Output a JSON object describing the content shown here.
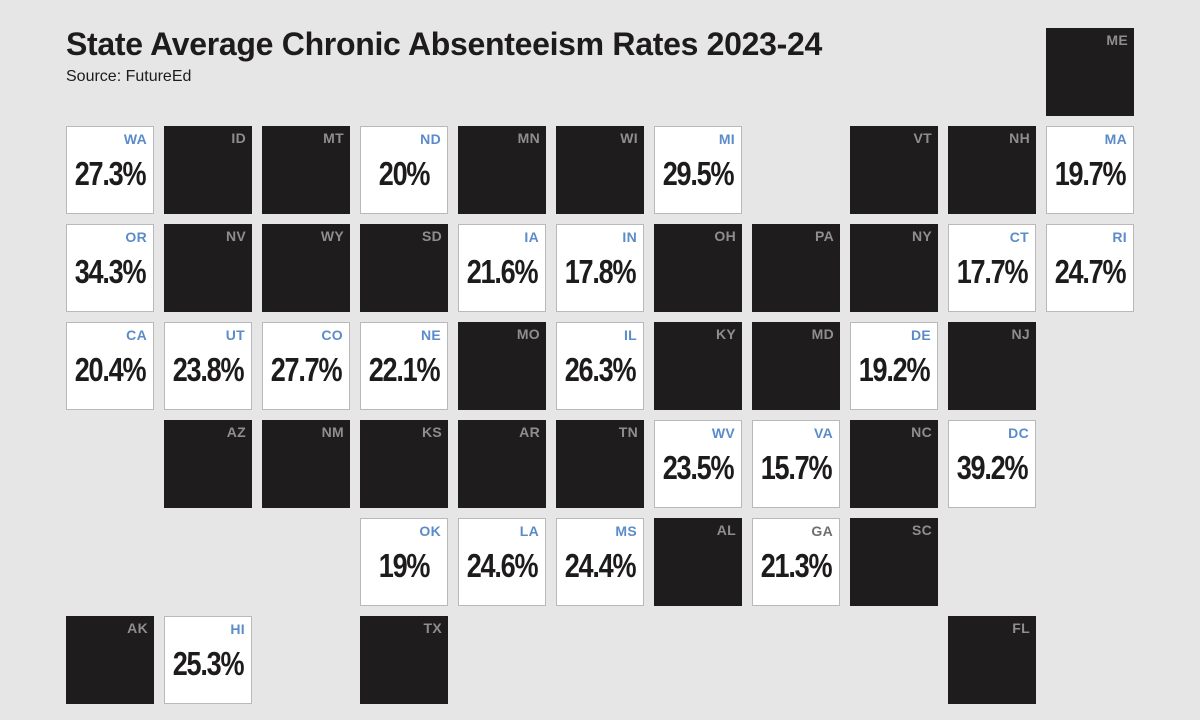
{
  "title": "State Average Chronic Absenteeism Rates 2023-24",
  "source": "Source: FutureEd",
  "colors": {
    "background": "#e6e6e7",
    "no_data_tile": "#1e1c1d",
    "data_tile": "#ffffff",
    "label_blue": "#5b8cc9",
    "label_gray": "#8e8d8f"
  },
  "chart_data": {
    "type": "tile-grid-map",
    "title": "State Average Chronic Absenteeism Rates 2023-24",
    "source": "Source: FutureEd",
    "unit": "%",
    "states": [
      {
        "abbr": "ME",
        "row": 0,
        "col": 10,
        "value": null
      },
      {
        "abbr": "WA",
        "row": 1,
        "col": 0,
        "value": "27.3%"
      },
      {
        "abbr": "ID",
        "row": 1,
        "col": 1,
        "value": null
      },
      {
        "abbr": "MT",
        "row": 1,
        "col": 2,
        "value": null
      },
      {
        "abbr": "ND",
        "row": 1,
        "col": 3,
        "value": "20%"
      },
      {
        "abbr": "MN",
        "row": 1,
        "col": 4,
        "value": null
      },
      {
        "abbr": "WI",
        "row": 1,
        "col": 5,
        "value": null
      },
      {
        "abbr": "MI",
        "row": 1,
        "col": 6,
        "value": "29.5%"
      },
      {
        "abbr": "VT",
        "row": 1,
        "col": 8,
        "value": null
      },
      {
        "abbr": "NH",
        "row": 1,
        "col": 9,
        "value": null
      },
      {
        "abbr": "MA",
        "row": 1,
        "col": 10,
        "value": "19.7%"
      },
      {
        "abbr": "OR",
        "row": 2,
        "col": 0,
        "value": "34.3%"
      },
      {
        "abbr": "NV",
        "row": 2,
        "col": 1,
        "value": null
      },
      {
        "abbr": "WY",
        "row": 2,
        "col": 2,
        "value": null
      },
      {
        "abbr": "SD",
        "row": 2,
        "col": 3,
        "value": null
      },
      {
        "abbr": "IA",
        "row": 2,
        "col": 4,
        "value": "21.6%"
      },
      {
        "abbr": "IN",
        "row": 2,
        "col": 5,
        "value": "17.8%"
      },
      {
        "abbr": "OH",
        "row": 2,
        "col": 6,
        "value": null
      },
      {
        "abbr": "PA",
        "row": 2,
        "col": 7,
        "value": null
      },
      {
        "abbr": "NY",
        "row": 2,
        "col": 8,
        "value": null
      },
      {
        "abbr": "CT",
        "row": 2,
        "col": 9,
        "value": "17.7%"
      },
      {
        "abbr": "RI",
        "row": 2,
        "col": 10,
        "value": "24.7%"
      },
      {
        "abbr": "CA",
        "row": 3,
        "col": 0,
        "value": "20.4%"
      },
      {
        "abbr": "UT",
        "row": 3,
        "col": 1,
        "value": "23.8%"
      },
      {
        "abbr": "CO",
        "row": 3,
        "col": 2,
        "value": "27.7%"
      },
      {
        "abbr": "NE",
        "row": 3,
        "col": 3,
        "value": "22.1%"
      },
      {
        "abbr": "MO",
        "row": 3,
        "col": 4,
        "value": null
      },
      {
        "abbr": "IL",
        "row": 3,
        "col": 5,
        "value": "26.3%"
      },
      {
        "abbr": "KY",
        "row": 3,
        "col": 6,
        "value": null
      },
      {
        "abbr": "MD",
        "row": 3,
        "col": 7,
        "value": null
      },
      {
        "abbr": "DE",
        "row": 3,
        "col": 8,
        "value": "19.2%"
      },
      {
        "abbr": "NJ",
        "row": 3,
        "col": 9,
        "value": null
      },
      {
        "abbr": "AZ",
        "row": 4,
        "col": 1,
        "value": null
      },
      {
        "abbr": "NM",
        "row": 4,
        "col": 2,
        "value": null
      },
      {
        "abbr": "KS",
        "row": 4,
        "col": 3,
        "value": null
      },
      {
        "abbr": "AR",
        "row": 4,
        "col": 4,
        "value": null
      },
      {
        "abbr": "TN",
        "row": 4,
        "col": 5,
        "value": null
      },
      {
        "abbr": "WV",
        "row": 4,
        "col": 6,
        "value": "23.5%"
      },
      {
        "abbr": "VA",
        "row": 4,
        "col": 7,
        "value": "15.7%"
      },
      {
        "abbr": "NC",
        "row": 4,
        "col": 8,
        "value": null
      },
      {
        "abbr": "DC",
        "row": 4,
        "col": 9,
        "value": "39.2%"
      },
      {
        "abbr": "OK",
        "row": 5,
        "col": 3,
        "value": "19%"
      },
      {
        "abbr": "LA",
        "row": 5,
        "col": 4,
        "value": "24.6%"
      },
      {
        "abbr": "MS",
        "row": 5,
        "col": 5,
        "value": "24.4%"
      },
      {
        "abbr": "AL",
        "row": 5,
        "col": 6,
        "value": null
      },
      {
        "abbr": "GA",
        "row": 5,
        "col": 7,
        "value": "21.3%",
        "label_style": "gray"
      },
      {
        "abbr": "SC",
        "row": 5,
        "col": 8,
        "value": null
      },
      {
        "abbr": "AK",
        "row": 6,
        "col": 0,
        "value": null
      },
      {
        "abbr": "HI",
        "row": 6,
        "col": 1,
        "value": "25.3%"
      },
      {
        "abbr": "TX",
        "row": 6,
        "col": 3,
        "value": null
      },
      {
        "abbr": "FL",
        "row": 6,
        "col": 9,
        "value": null
      }
    ]
  }
}
